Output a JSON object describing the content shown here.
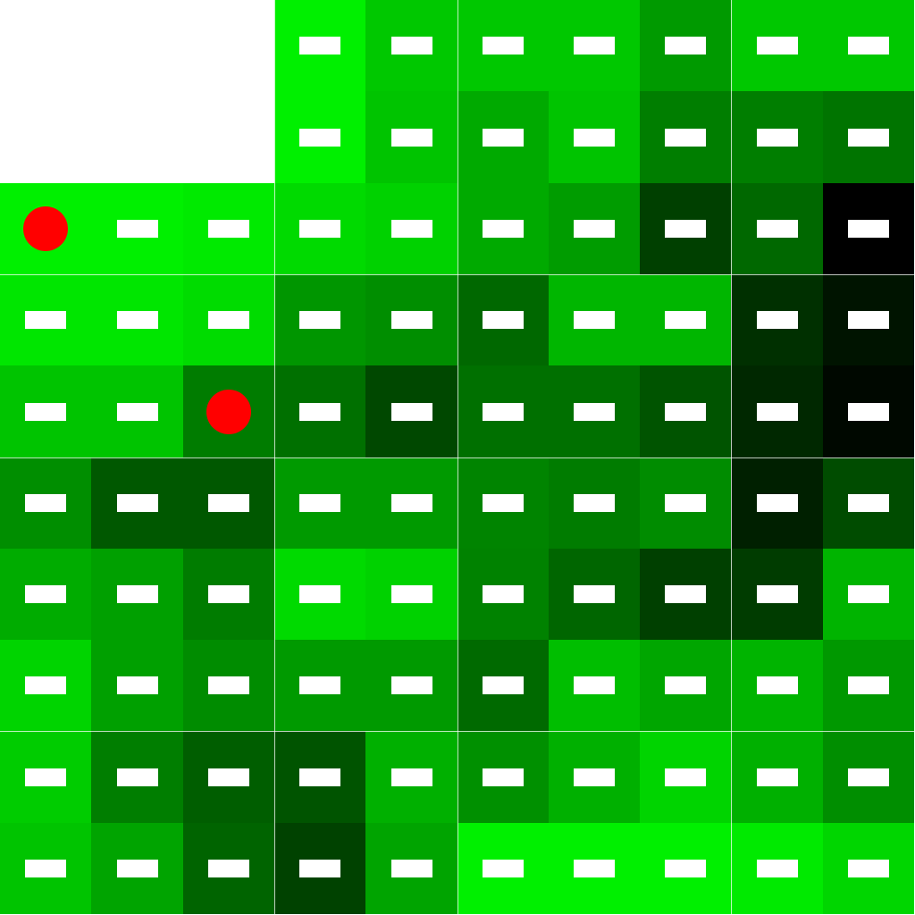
{
  "board": {
    "rows": 10,
    "cols": 10,
    "empty_color": "#ffffff",
    "tile_colors": [
      [
        null,
        null,
        null,
        "#00f000",
        "#00c800",
        "#00c800",
        "#00c800",
        "#009a00",
        "#00c800",
        "#00c800"
      ],
      [
        null,
        null,
        null,
        "#00f000",
        "#00c400",
        "#00aa00",
        "#00c400",
        "#007e00",
        "#007e00",
        "#007400"
      ],
      [
        "#00f000",
        "#00f000",
        "#00ea00",
        "#00da00",
        "#00d200",
        "#00aa00",
        "#009c00",
        "#004000",
        "#006800",
        "#000000"
      ],
      [
        "#00e600",
        "#00e600",
        "#00dc00",
        "#009600",
        "#008e00",
        "#006800",
        "#00b600",
        "#00b600",
        "#003000",
        "#001400"
      ],
      [
        "#00c400",
        "#00c400",
        "#007c00",
        "#007000",
        "#004800",
        "#007000",
        "#007000",
        "#005400",
        "#002800",
        "#000800"
      ],
      [
        "#008e00",
        "#005800",
        "#005800",
        "#009a00",
        "#009a00",
        "#008400",
        "#007c00",
        "#008c00",
        "#002000",
        "#004c00"
      ],
      [
        "#00ac00",
        "#00a000",
        "#007c00",
        "#00da00",
        "#00d200",
        "#008200",
        "#006600",
        "#004000",
        "#003c00",
        "#00b400"
      ],
      [
        "#00d400",
        "#00a000",
        "#008c00",
        "#009a00",
        "#009a00",
        "#006a00",
        "#00be00",
        "#00a600",
        "#00b400",
        "#009800"
      ],
      [
        "#00cc00",
        "#007e00",
        "#005e00",
        "#005400",
        "#00b000",
        "#009000",
        "#00b000",
        "#00d400",
        "#00b000",
        "#008e00"
      ],
      [
        "#00c400",
        "#00a400",
        "#006400",
        "#004200",
        "#00a400",
        "#00f000",
        "#00f000",
        "#00f000",
        "#00ea00",
        "#00d600"
      ]
    ],
    "tokens": [
      {
        "row": 2,
        "col": 0,
        "color": "#ff0000"
      },
      {
        "row": 4,
        "col": 2,
        "color": "#ff0000"
      }
    ]
  }
}
